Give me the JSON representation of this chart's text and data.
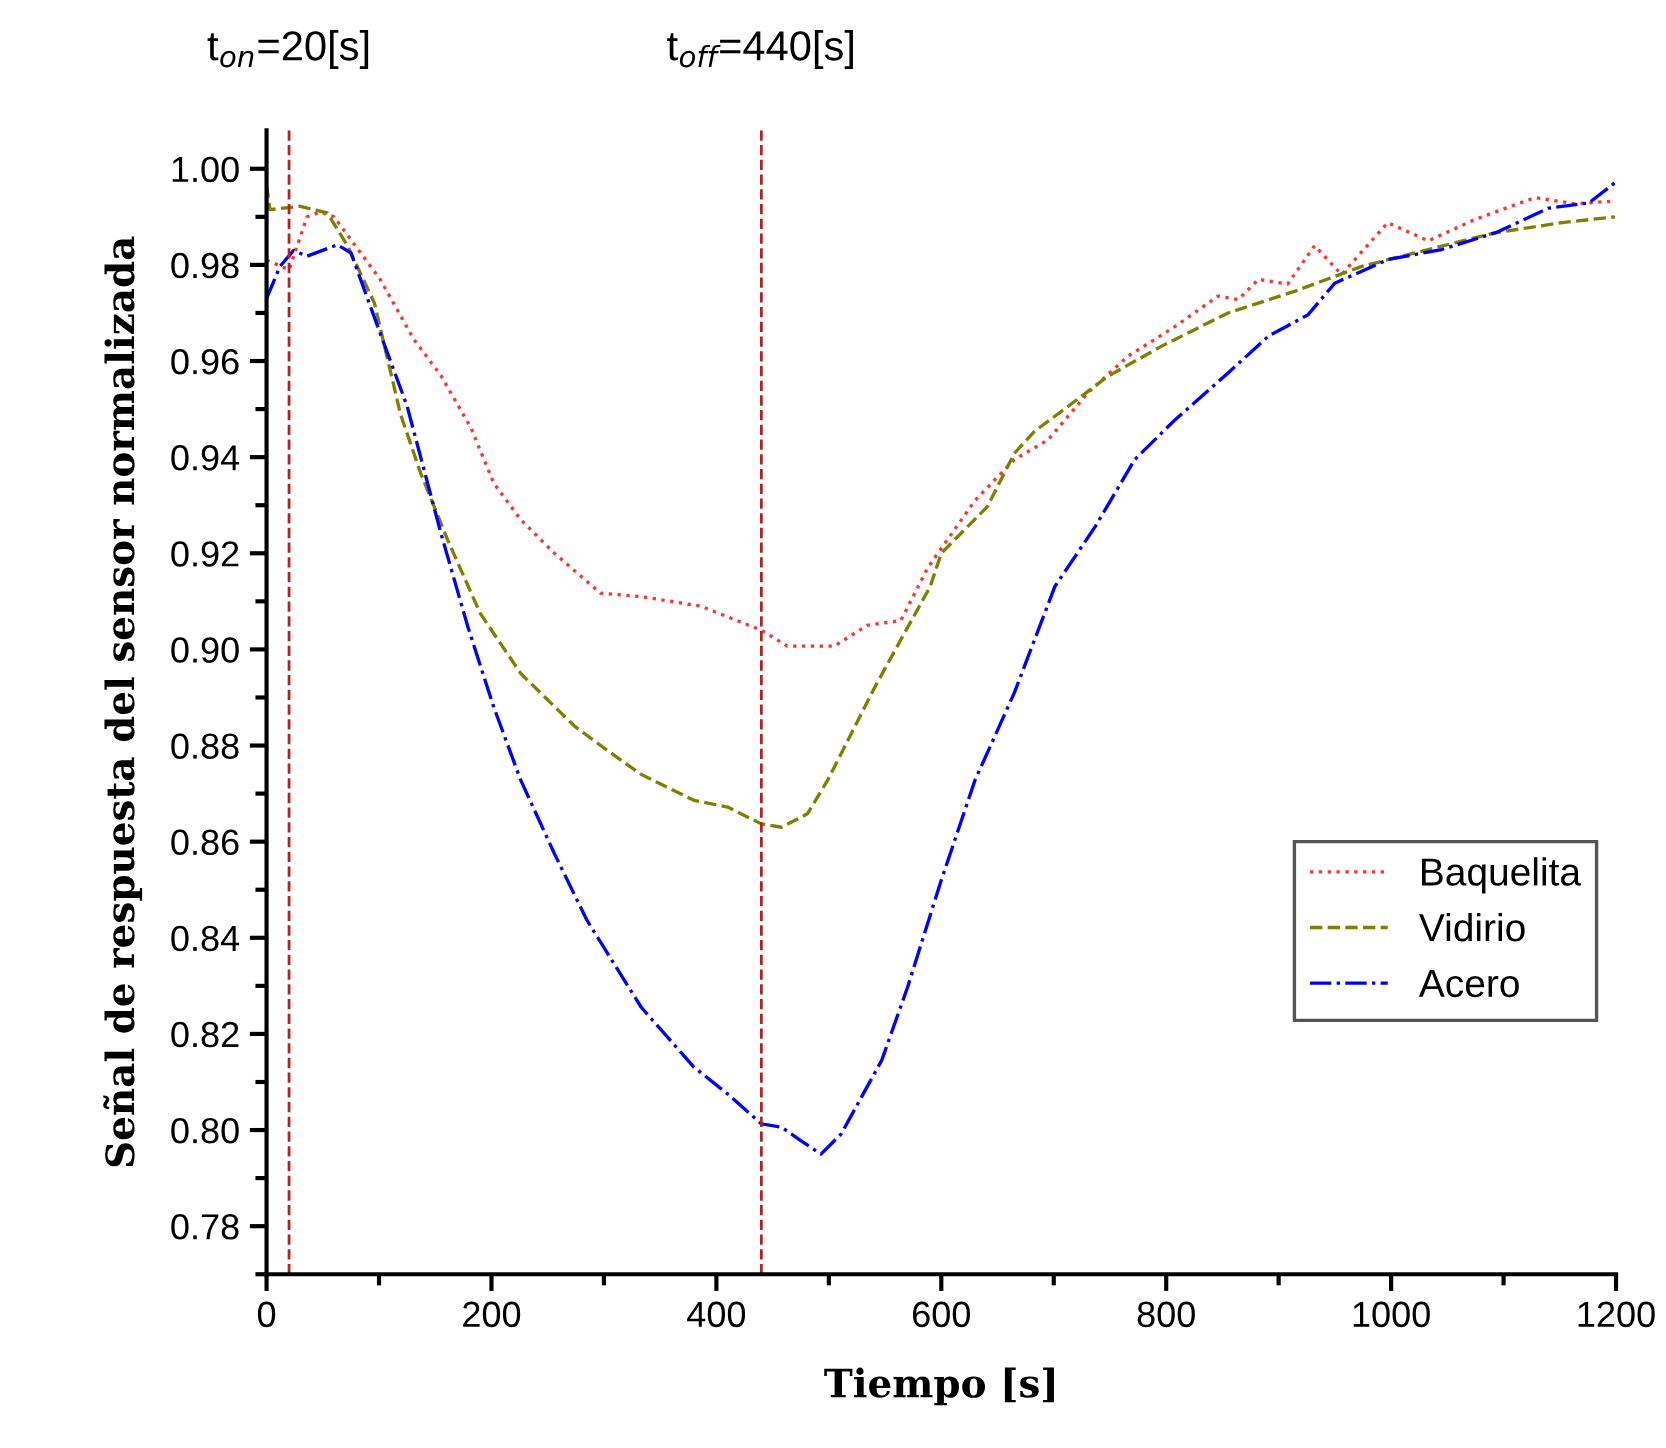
{
  "chart_data": {
    "type": "line",
    "xlabel": "Tiempo [s]",
    "ylabel": "Señal de respuesta del sensor normalizada",
    "xlim": [
      0,
      1200
    ],
    "xticks": [
      0,
      200,
      400,
      600,
      800,
      1000,
      1200
    ],
    "ylim": [
      0.77,
      1.008
    ],
    "yticks": [
      0.78,
      {
        "value": 0.8,
        "label": "0.80"
      },
      0.82,
      0.84,
      0.86,
      0.88,
      {
        "value": 0.9,
        "label": "0.90"
      },
      0.92,
      0.94,
      0.96,
      0.98,
      {
        "value": 1.0,
        "label": "1.00"
      }
    ],
    "grid": false,
    "legend": "right",
    "ref_lines": [
      {
        "axis": "x",
        "value": 20,
        "label": "t$_{on}$=20[s]",
        "color": "#b22222",
        "line_style": "dashed"
      },
      {
        "axis": "x",
        "value": 440,
        "label": "t$_{off}$=440[s]",
        "color": "#b22222",
        "line_style": "dashed"
      }
    ],
    "series": [
      {
        "name": "Baquelita",
        "color": "#ff3333",
        "line_style": "dotted",
        "x": [
          0,
          20,
          36,
          48,
          60,
          101,
          131,
          155,
          182,
          202,
          226,
          256,
          297,
          333,
          386,
          440,
          463,
          505,
          534,
          564,
          588,
          630,
          665,
          695,
          730,
          766,
          808,
          846,
          864,
          882,
          908,
          932,
          956,
          997,
          1033,
          1075,
          1128,
          1164,
          1199
        ],
        "values": [
          0.981,
          0.979,
          0.99,
          0.991,
          0.99,
          0.977,
          0.9645,
          0.957,
          0.946,
          0.9346,
          0.927,
          0.92,
          0.9117,
          0.911,
          0.909,
          0.904,
          0.9007,
          0.9007,
          0.905,
          0.906,
          0.917,
          0.931,
          0.9395,
          0.9436,
          0.9533,
          0.961,
          0.9672,
          0.9735,
          0.9728,
          0.977,
          0.976,
          0.984,
          0.978,
          0.9888,
          0.985,
          0.9895,
          0.994,
          0.9927,
          0.9933
        ]
      },
      {
        "name": "Vidirio",
        "color": "#808000",
        "line_style": "dashed",
        "x": [
          0,
          3,
          30,
          54,
          72,
          96,
          119,
          137,
          161,
          190,
          226,
          274,
          303,
          333,
          380,
          410,
          440,
          458,
          481,
          499,
          517,
          541,
          564,
          590,
          600,
          641,
          665,
          683,
          713,
          748,
          796,
          855,
          914,
          974,
          1033,
          1093,
          1152,
          1199
        ],
        "values": [
          0.9965,
          0.9915,
          0.9922,
          0.9908,
          0.984,
          0.972,
          0.949,
          0.9367,
          0.9228,
          0.9075,
          0.895,
          0.884,
          0.879,
          0.874,
          0.8686,
          0.8672,
          0.8637,
          0.863,
          0.8658,
          0.8728,
          0.8811,
          0.8922,
          0.902,
          0.913,
          0.92,
          0.9297,
          0.9408,
          0.9454,
          0.9506,
          0.9568,
          0.9631,
          0.97,
          0.9745,
          0.9797,
          0.9832,
          0.9867,
          0.9888,
          0.99
        ]
      },
      {
        "name": "Acero",
        "color": "#0000ff",
        "line_style": "dashdot",
        "x": [
          0,
          12,
          24,
          36,
          63,
          75,
          101,
          125,
          155,
          179,
          202,
          226,
          256,
          285,
          333,
          380,
          410,
          440,
          458,
          475,
          493,
          511,
          547,
          570,
          600,
          630,
          665,
          701,
          737,
          772,
          808,
          855,
          891,
          926,
          950,
          997,
          1045,
          1093,
          1140,
          1176,
          1199
        ],
        "values": [
          0.973,
          0.9797,
          0.983,
          0.9818,
          0.9842,
          0.9825,
          0.9658,
          0.9506,
          0.9242,
          0.9047,
          0.888,
          0.8728,
          0.8575,
          0.8436,
          0.8256,
          0.8131,
          0.8075,
          0.8013,
          0.8006,
          0.7978,
          0.795,
          0.7992,
          0.8145,
          0.8297,
          0.852,
          0.8728,
          0.891,
          0.9131,
          0.9256,
          0.9395,
          0.9478,
          0.9575,
          0.9652,
          0.9696,
          0.9762,
          0.9811,
          0.9832,
          0.9867,
          0.9918,
          0.9929,
          0.9971
        ]
      }
    ]
  }
}
